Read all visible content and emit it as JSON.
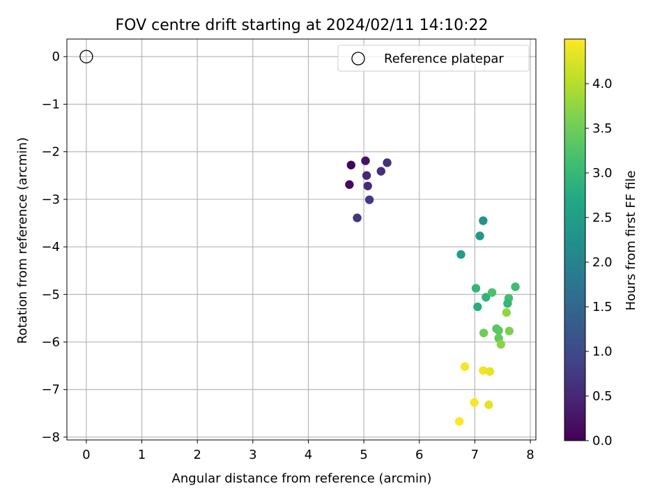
{
  "chart_data": {
    "type": "scatter",
    "title": "FOV centre drift starting at 2024/02/11 14:10:22",
    "xlabel": "Angular distance from reference (arcmin)",
    "ylabel": "Rotation from reference (arcmin)",
    "xlim": [
      -0.35,
      8.1
    ],
    "ylim": [
      -8.06,
      0.37
    ],
    "xticks": [
      0,
      1,
      2,
      3,
      4,
      5,
      6,
      7,
      8
    ],
    "yticks": [
      0,
      -1,
      -2,
      -3,
      -4,
      -5,
      -6,
      -7,
      -8
    ],
    "ytick_labels": [
      "0",
      "−1",
      "−2",
      "−3",
      "−4",
      "−5",
      "−6",
      "−7",
      "−8"
    ],
    "grid": true,
    "legend": {
      "location": "upper right",
      "entries": [
        "Reference platepar"
      ]
    },
    "colorbar": {
      "label": "Hours from first FF file",
      "colormap": "viridis",
      "range": [
        0.0,
        4.5
      ],
      "ticks": [
        0.0,
        0.5,
        1.0,
        1.5,
        2.0,
        2.5,
        3.0,
        3.5,
        4.0
      ],
      "tick_labels": [
        "0.0",
        "0.5",
        "1.0",
        "1.5",
        "2.0",
        "2.5",
        "3.0",
        "3.5",
        "4.0"
      ]
    },
    "reference_point": {
      "x": 0,
      "y": 0
    },
    "points": [
      {
        "x": 4.77,
        "y": -2.28,
        "hours": 0.05
      },
      {
        "x": 4.74,
        "y": -2.69,
        "hours": 0.1
      },
      {
        "x": 5.03,
        "y": -2.19,
        "hours": 0.2
      },
      {
        "x": 5.05,
        "y": -2.5,
        "hours": 0.5
      },
      {
        "x": 5.07,
        "y": -2.72,
        "hours": 0.55
      },
      {
        "x": 5.31,
        "y": -2.41,
        "hours": 0.6
      },
      {
        "x": 5.42,
        "y": -2.23,
        "hours": 0.65
      },
      {
        "x": 5.1,
        "y": -3.01,
        "hours": 0.75
      },
      {
        "x": 4.88,
        "y": -3.39,
        "hours": 0.7
      },
      {
        "x": 7.15,
        "y": -3.45,
        "hours": 2.3
      },
      {
        "x": 7.09,
        "y": -3.77,
        "hours": 2.4
      },
      {
        "x": 6.75,
        "y": -4.16,
        "hours": 2.5
      },
      {
        "x": 7.02,
        "y": -4.87,
        "hours": 2.95
      },
      {
        "x": 7.05,
        "y": -5.26,
        "hours": 2.8
      },
      {
        "x": 7.2,
        "y": -5.06,
        "hours": 2.9
      },
      {
        "x": 7.31,
        "y": -4.96,
        "hours": 3.2
      },
      {
        "x": 7.73,
        "y": -4.84,
        "hours": 3.1
      },
      {
        "x": 7.61,
        "y": -5.08,
        "hours": 3.15
      },
      {
        "x": 7.59,
        "y": -5.19,
        "hours": 2.95
      },
      {
        "x": 7.57,
        "y": -5.38,
        "hours": 3.75
      },
      {
        "x": 7.39,
        "y": -5.72,
        "hours": 3.3
      },
      {
        "x": 7.43,
        "y": -5.76,
        "hours": 3.35
      },
      {
        "x": 7.43,
        "y": -5.92,
        "hours": 3.4
      },
      {
        "x": 7.62,
        "y": -5.77,
        "hours": 3.6
      },
      {
        "x": 7.16,
        "y": -5.81,
        "hours": 3.5
      },
      {
        "x": 7.47,
        "y": -6.05,
        "hours": 3.7
      },
      {
        "x": 6.82,
        "y": -6.52,
        "hours": 4.45
      },
      {
        "x": 7.15,
        "y": -6.6,
        "hours": 4.4
      },
      {
        "x": 7.27,
        "y": -6.62,
        "hours": 4.35
      },
      {
        "x": 6.99,
        "y": -7.27,
        "hours": 4.45
      },
      {
        "x": 7.25,
        "y": -7.32,
        "hours": 4.3
      },
      {
        "x": 6.72,
        "y": -7.67,
        "hours": 4.5
      }
    ]
  }
}
